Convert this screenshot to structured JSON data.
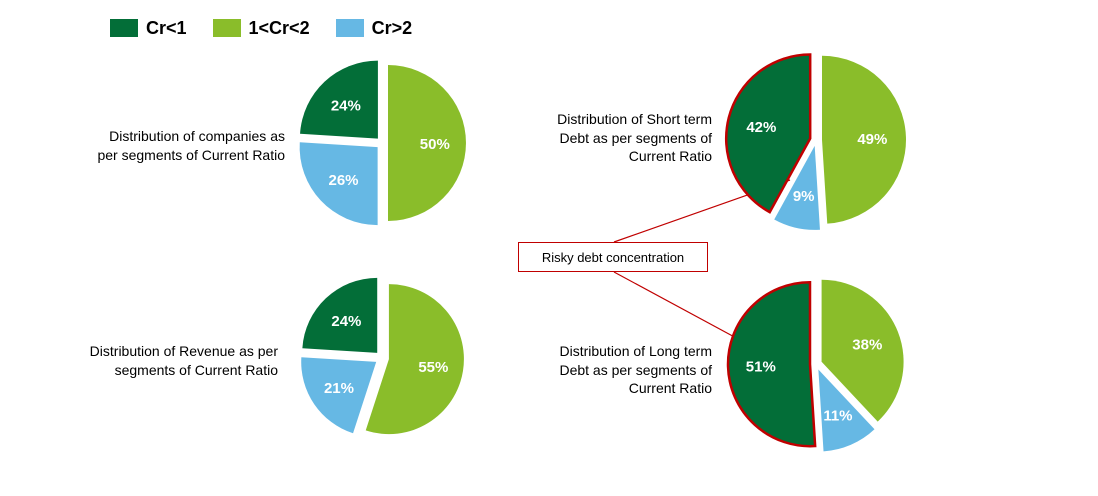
{
  "legend": [
    {
      "label": "Cr<1",
      "color": "#036e38"
    },
    {
      "label": "1<Cr<2",
      "color": "#8abd2a"
    },
    {
      "label": "Cr>2",
      "color": "#66b8e4"
    }
  ],
  "callout": {
    "text": "Risky debt concentration",
    "border_color": "#c00000"
  },
  "chart_data": [
    {
      "type": "pie",
      "title": "Distribution of companies as per segments of Current Ratio",
      "categories": [
        "Cr<1",
        "1<Cr<2",
        "Cr>2"
      ],
      "values": [
        24,
        50,
        26
      ],
      "data_labels": [
        "24%",
        "50%",
        "26%"
      ],
      "highlight": []
    },
    {
      "type": "pie",
      "title": "Distribution of Revenue as per segments of Current Ratio",
      "categories": [
        "Cr<1",
        "1<Cr<2",
        "Cr>2"
      ],
      "values": [
        24,
        55,
        21
      ],
      "data_labels": [
        "24%",
        "55%",
        "21%"
      ],
      "highlight": []
    },
    {
      "type": "pie",
      "title": "Distribution of Short term Debt as per segments of Current Ratio",
      "categories": [
        "Cr<1",
        "1<Cr<2",
        "Cr>2"
      ],
      "values": [
        42,
        49,
        9
      ],
      "data_labels": [
        "42%",
        "49%",
        "9%"
      ],
      "highlight": [
        "Cr<1"
      ]
    },
    {
      "type": "pie",
      "title": "Distribution of Long term Debt as per segments of Current Ratio",
      "categories": [
        "Cr<1",
        "1<Cr<2",
        "Cr>2"
      ],
      "values": [
        51,
        38,
        11
      ],
      "data_labels": [
        "51%",
        "38%",
        "11%"
      ],
      "highlight": [
        "Cr<1"
      ]
    }
  ],
  "captions": [
    {
      "lines": [
        "Distribution of companies as",
        "per segments of Current Ratio"
      ]
    },
    {
      "lines": [
        "Distribution of Revenue as per",
        "segments of Current Ratio"
      ]
    },
    {
      "lines": [
        "Distribution of Short term",
        "Debt  as per segments of",
        "Current Ratio"
      ]
    },
    {
      "lines": [
        "Distribution of Long term",
        "Debt  as per segments of",
        "Current Ratio"
      ]
    }
  ]
}
